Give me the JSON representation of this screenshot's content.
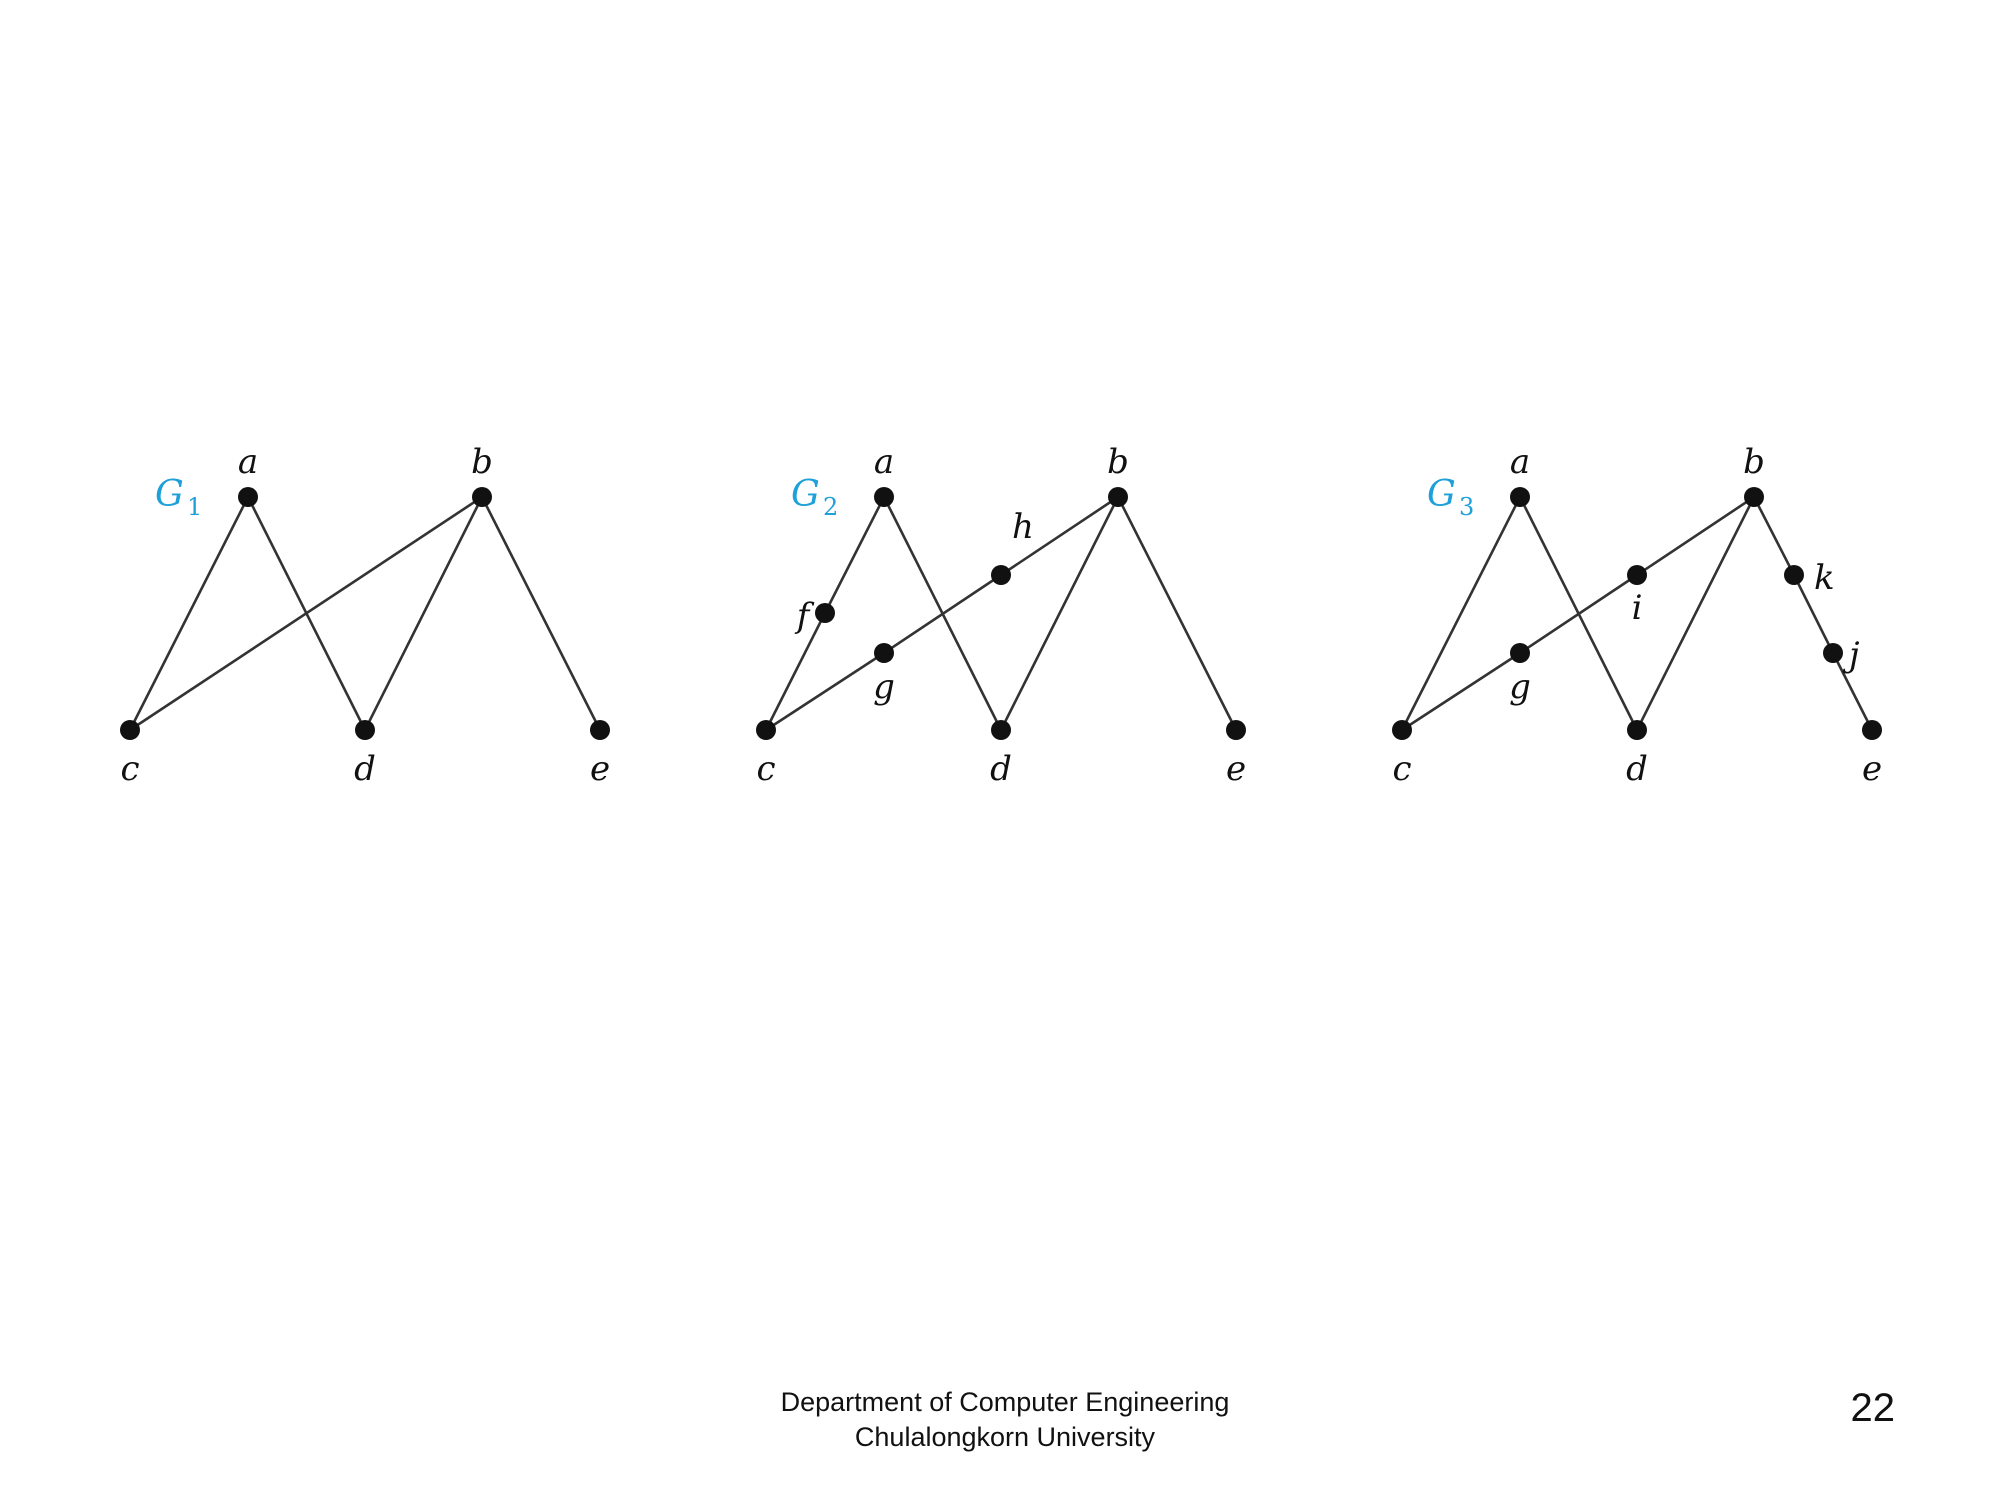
{
  "graphs": [
    {
      "name": "G",
      "subscript": "1",
      "vertices": [
        "a",
        "b",
        "c",
        "d",
        "e"
      ],
      "edges": [
        [
          "a",
          "c"
        ],
        [
          "a",
          "d"
        ],
        [
          "b",
          "c"
        ],
        [
          "b",
          "d"
        ],
        [
          "b",
          "e"
        ]
      ]
    },
    {
      "name": "G",
      "subscript": "2",
      "vertices": [
        "a",
        "b",
        "c",
        "d",
        "e",
        "f",
        "g",
        "h"
      ],
      "edges": [
        [
          "a",
          "f"
        ],
        [
          "f",
          "c"
        ],
        [
          "a",
          "d"
        ],
        [
          "c",
          "g"
        ],
        [
          "g",
          "h"
        ],
        [
          "h",
          "b"
        ],
        [
          "b",
          "d"
        ],
        [
          "b",
          "e"
        ]
      ]
    },
    {
      "name": "G",
      "subscript": "3",
      "vertices": [
        "a",
        "b",
        "c",
        "d",
        "e",
        "g",
        "i",
        "k",
        "j"
      ],
      "edges": [
        [
          "a",
          "c"
        ],
        [
          "a",
          "d"
        ],
        [
          "c",
          "g"
        ],
        [
          "g",
          "i"
        ],
        [
          "i",
          "b"
        ],
        [
          "b",
          "d"
        ],
        [
          "b",
          "k"
        ],
        [
          "k",
          "j"
        ],
        [
          "j",
          "e"
        ]
      ]
    }
  ],
  "colors": {
    "graph_name": "#1ea0d8",
    "edge": "#333333",
    "node": "#111111"
  },
  "footer": {
    "line1": "Department of Computer Engineering",
    "line2": "Chulalongkorn University"
  },
  "page_number": "22"
}
